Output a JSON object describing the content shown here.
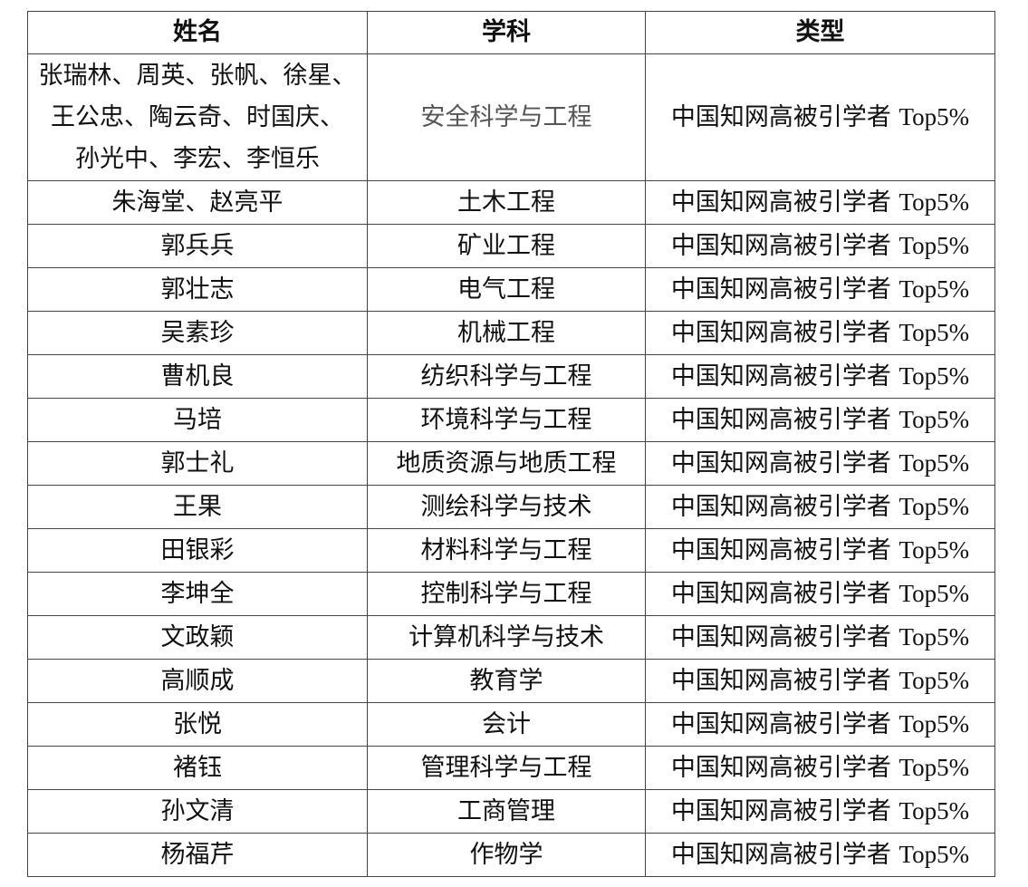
{
  "table": {
    "headers": [
      "姓名",
      "学科",
      "类型"
    ],
    "rows": [
      {
        "names": [
          "张瑞林、周英、张帆、徐星、",
          "王公忠、陶云奇、时国庆、",
          "孙光中、李宏、李恒乐"
        ],
        "subject": "安全科学与工程",
        "type": "中国知网高被引学者",
        "type_suffix": "Top5%"
      },
      {
        "names": [
          "朱海堂、赵亮平"
        ],
        "subject": "土木工程",
        "type": "中国知网高被引学者",
        "type_suffix": "Top5%"
      },
      {
        "names": [
          "郭兵兵"
        ],
        "subject": "矿业工程",
        "type": "中国知网高被引学者",
        "type_suffix": "Top5%"
      },
      {
        "names": [
          "郭壮志"
        ],
        "subject": "电气工程",
        "type": "中国知网高被引学者",
        "type_suffix": "Top5%"
      },
      {
        "names": [
          "吴素珍"
        ],
        "subject": "机械工程",
        "type": "中国知网高被引学者",
        "type_suffix": "Top5%"
      },
      {
        "names": [
          "曹机良"
        ],
        "subject": "纺织科学与工程",
        "type": "中国知网高被引学者",
        "type_suffix": "Top5%"
      },
      {
        "names": [
          "马培"
        ],
        "subject": "环境科学与工程",
        "type": "中国知网高被引学者",
        "type_suffix": "Top5%"
      },
      {
        "names": [
          "郭士礼"
        ],
        "subject": "地质资源与地质工程",
        "type": "中国知网高被引学者",
        "type_suffix": "Top5%"
      },
      {
        "names": [
          "王果"
        ],
        "subject": "测绘科学与技术",
        "type": "中国知网高被引学者",
        "type_suffix": "Top5%"
      },
      {
        "names": [
          "田银彩"
        ],
        "subject": "材料科学与工程",
        "type": "中国知网高被引学者",
        "type_suffix": "Top5%"
      },
      {
        "names": [
          "李坤全"
        ],
        "subject": "控制科学与工程",
        "type": "中国知网高被引学者",
        "type_suffix": "Top5%"
      },
      {
        "names": [
          "文政颖"
        ],
        "subject": "计算机科学与技术",
        "type": "中国知网高被引学者",
        "type_suffix": "Top5%"
      },
      {
        "names": [
          "高顺成"
        ],
        "subject": "教育学",
        "type": "中国知网高被引学者",
        "type_suffix": "Top5%"
      },
      {
        "names": [
          "张悦"
        ],
        "subject": "会计",
        "type": "中国知网高被引学者",
        "type_suffix": "Top5%"
      },
      {
        "names": [
          "褚钰"
        ],
        "subject": "管理科学与工程",
        "type": "中国知网高被引学者",
        "type_suffix": "Top5%"
      },
      {
        "names": [
          "孙文清"
        ],
        "subject": "工商管理",
        "type": "中国知网高被引学者",
        "type_suffix": "Top5%"
      },
      {
        "names": [
          "杨福芹"
        ],
        "subject": "作物学",
        "type": "中国知网高被引学者",
        "type_suffix": "Top5%"
      }
    ]
  }
}
